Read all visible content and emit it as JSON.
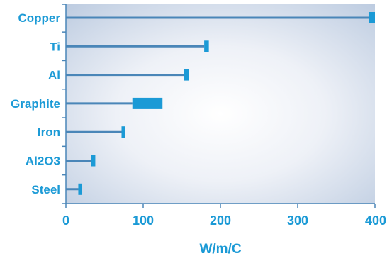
{
  "colors": {
    "accent": "#1b9ad6",
    "stem": "#4a86b8",
    "axis": "#4a86b8"
  },
  "chart_data": {
    "type": "bar",
    "title": "",
    "xlabel": "W/m/C",
    "ylabel": "",
    "xlim": [
      0,
      400
    ],
    "xticks": [
      0,
      100,
      200,
      300,
      400
    ],
    "xtick_labels": [
      "0",
      "100",
      "200",
      "300",
      "400"
    ],
    "grid": false,
    "categories": [
      "Copper",
      "Ti",
      "Al",
      "Graphite",
      "Iron",
      "Al2O3",
      "Steel"
    ],
    "ranges": [
      {
        "category": "Copper",
        "low": 392,
        "high": 400
      },
      {
        "category": "Ti",
        "low": 179,
        "high": 185
      },
      {
        "category": "Al",
        "low": 153,
        "high": 159
      },
      {
        "category": "Graphite",
        "low": 86,
        "high": 125
      },
      {
        "category": "Iron",
        "low": 72,
        "high": 77
      },
      {
        "category": "Al2O3",
        "low": 33,
        "high": 38
      },
      {
        "category": "Steel",
        "low": 16,
        "high": 21
      }
    ]
  }
}
